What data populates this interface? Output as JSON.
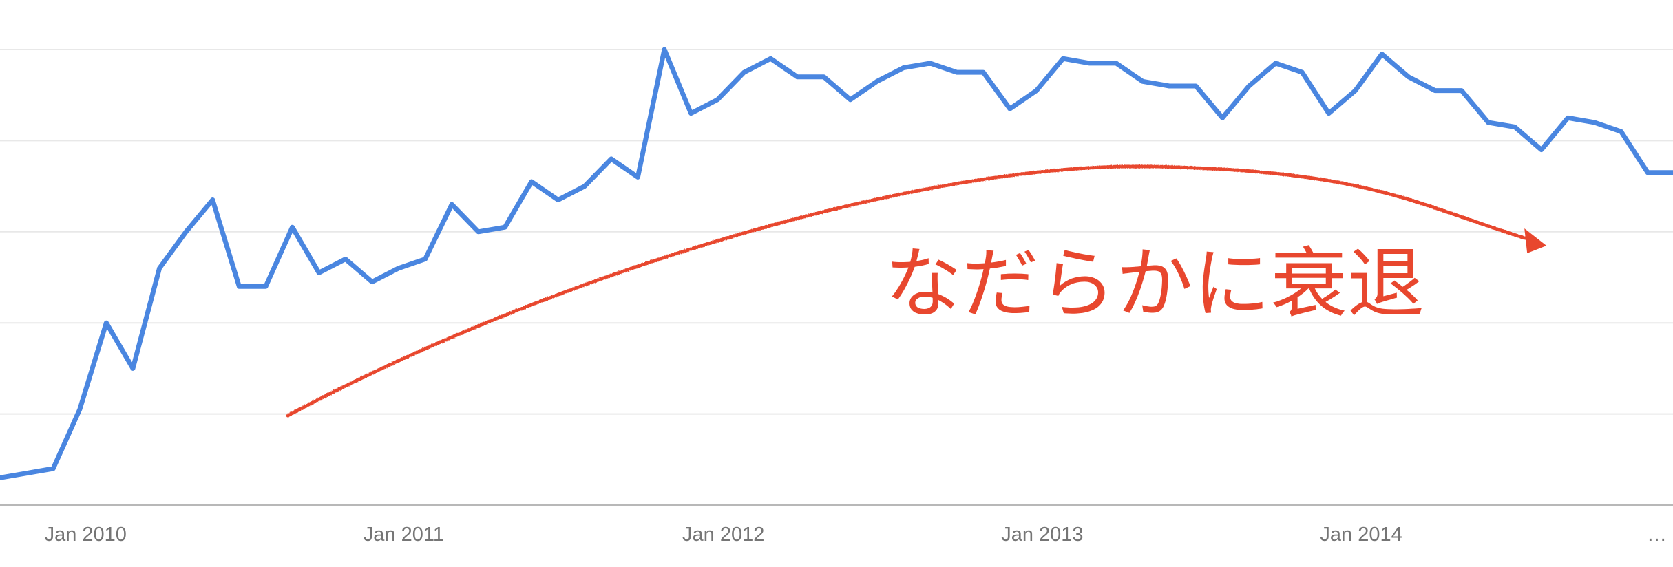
{
  "colors": {
    "series": "#4a86e0",
    "annotation": "#e8472e"
  },
  "chart_data": {
    "type": "line",
    "title": "",
    "xlabel": "",
    "ylabel": "",
    "ylim": [
      0,
      100
    ],
    "grid": true,
    "legend": "none",
    "x_tick_labels": [
      "Jan 2010",
      "Jan 2011",
      "Jan 2012",
      "Jan 2013",
      "Jan 2014"
    ],
    "x_tick_dates": [
      "2010-01",
      "2011-01",
      "2012-01",
      "2013-01",
      "2014-01"
    ],
    "x_overflow_label": "…",
    "series": [
      {
        "start_month": "2009-12",
        "interval": "month",
        "values": [
          6,
          7,
          8,
          21,
          40,
          30,
          52,
          60,
          67,
          48,
          48,
          61,
          51,
          54,
          49,
          52,
          54,
          66,
          60,
          61,
          71,
          67,
          70,
          76,
          72,
          100,
          86,
          89,
          95,
          98,
          94,
          94,
          89,
          93,
          96,
          97,
          95,
          95,
          87,
          91,
          98,
          97,
          97,
          93,
          92,
          92,
          85,
          92,
          97,
          95,
          86,
          91,
          99,
          94,
          91,
          91,
          84,
          83,
          78,
          85,
          84,
          82,
          73,
          73
        ]
      }
    ],
    "annotations": [
      {
        "text": "なだらかに衰退",
        "kind": "trend-arrow",
        "from": "2010-10",
        "to": "2014-09"
      }
    ]
  }
}
